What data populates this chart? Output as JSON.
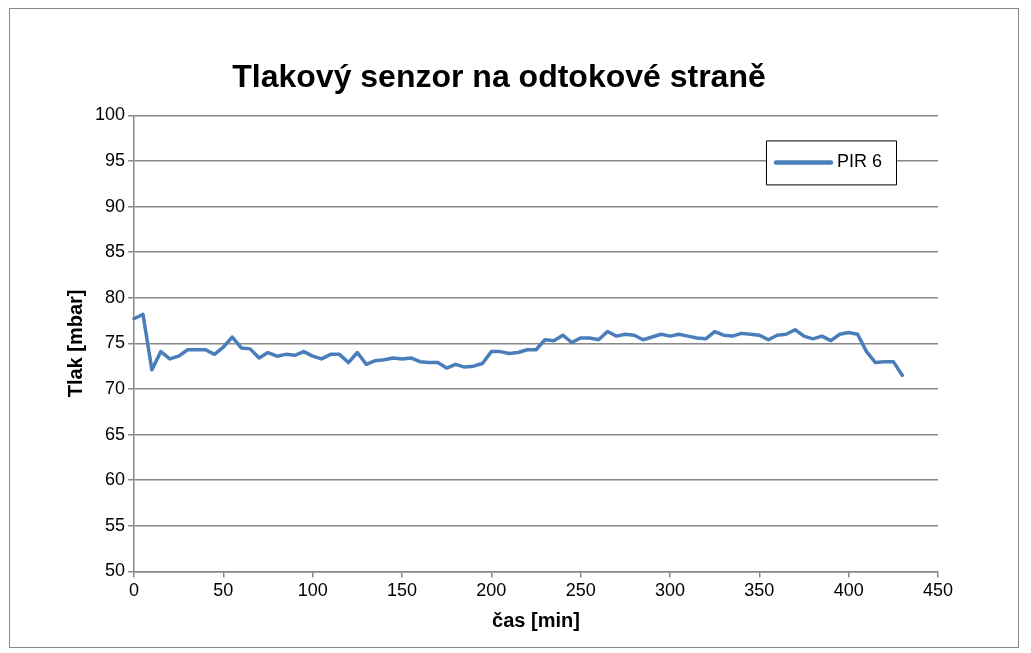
{
  "chart_data": {
    "type": "line",
    "title": "Tlakový senzor na odtokové straně",
    "xlabel": "čas [min]",
    "ylabel": "Tlak [mbar]",
    "x": [
      0,
      5,
      10,
      15,
      20,
      25,
      30,
      35,
      40,
      45,
      50,
      55,
      60,
      65,
      70,
      75,
      80,
      85,
      90,
      95,
      100,
      105,
      110,
      115,
      120,
      125,
      130,
      135,
      140,
      145,
      150,
      155,
      160,
      165,
      170,
      175,
      180,
      185,
      190,
      195,
      200,
      205,
      210,
      215,
      220,
      225,
      230,
      235,
      240,
      245,
      250,
      255,
      260,
      265,
      270,
      275,
      280,
      285,
      290,
      295,
      300,
      305,
      310,
      315,
      320,
      325,
      330,
      335,
      340,
      345,
      350,
      355,
      360,
      365,
      370,
      375,
      380,
      385,
      390,
      395,
      400,
      405,
      410,
      415,
      420,
      425,
      430
    ],
    "series": [
      {
        "name": "PIR 6",
        "color": "#4a7ebb",
        "values": [
          77.7,
          78.2,
          72.1,
          74.1,
          73.3,
          73.6,
          74.3,
          74.3,
          74.3,
          73.8,
          74.6,
          75.7,
          74.5,
          74.4,
          73.4,
          74.0,
          73.6,
          73.8,
          73.7,
          74.1,
          73.6,
          73.3,
          73.8,
          73.8,
          72.9,
          74.0,
          72.7,
          73.1,
          73.2,
          73.4,
          73.3,
          73.4,
          73.0,
          72.9,
          72.9,
          72.3,
          72.7,
          72.4,
          72.5,
          72.8,
          74.1,
          74.1,
          73.9,
          74.0,
          74.3,
          74.3,
          75.4,
          75.3,
          75.9,
          75.1,
          75.6,
          75.6,
          75.4,
          76.3,
          75.8,
          76.0,
          75.9,
          75.4,
          75.7,
          76.0,
          75.8,
          76.0,
          75.8,
          75.6,
          75.5,
          76.3,
          75.9,
          75.8,
          76.1,
          76.0,
          75.9,
          75.4,
          75.9,
          76.0,
          76.5,
          75.8,
          75.5,
          75.8,
          75.3,
          76.0,
          76.2,
          76.0,
          74.1,
          72.9,
          73.0,
          73.0,
          71.5
        ]
      }
    ],
    "xlim": [
      0,
      450
    ],
    "xticks": [
      0,
      50,
      100,
      150,
      200,
      250,
      300,
      350,
      400,
      450
    ],
    "ylim": [
      50,
      100
    ],
    "yticks": [
      50,
      55,
      60,
      65,
      70,
      75,
      80,
      85,
      90,
      95,
      100
    ],
    "grid": "y",
    "legend": "top right",
    "marker": "none",
    "line_style": "solid"
  }
}
